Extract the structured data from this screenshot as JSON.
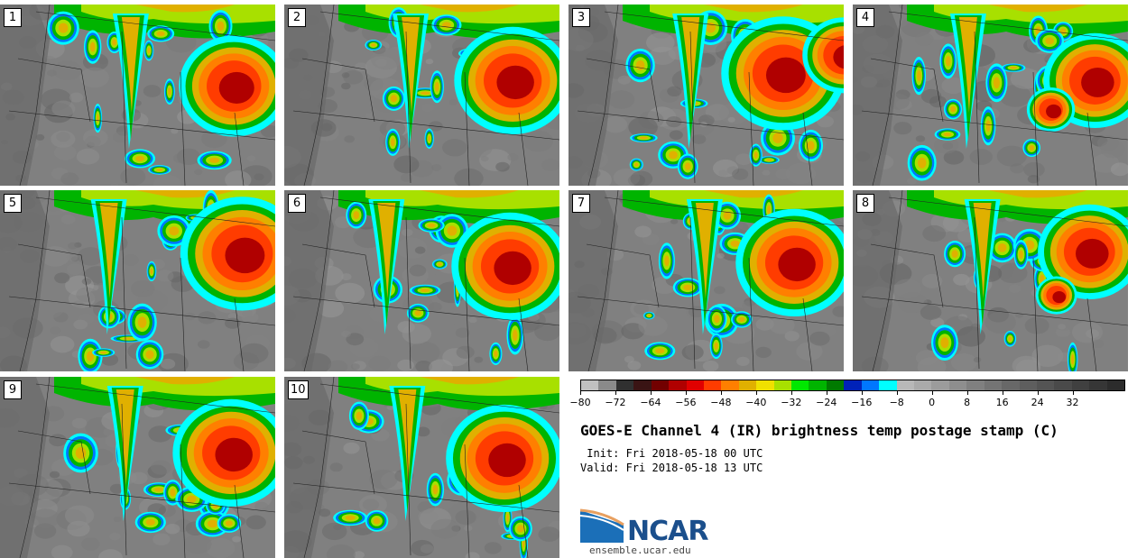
{
  "panels": [
    {
      "label": "1",
      "seed": 3,
      "storm": [
        [
          0.85,
          0.45,
          0.16
        ]
      ]
    },
    {
      "label": "2",
      "seed": 7,
      "storm": [
        [
          0.83,
          0.42,
          0.17
        ]
      ]
    },
    {
      "label": "3",
      "seed": 11,
      "storm": [
        [
          0.78,
          0.38,
          0.18
        ],
        [
          1.0,
          0.28,
          0.12
        ]
      ]
    },
    {
      "label": "4",
      "seed": 17,
      "storm": [
        [
          0.88,
          0.42,
          0.15
        ],
        [
          0.72,
          0.58,
          0.07
        ]
      ]
    },
    {
      "label": "5",
      "seed": 23,
      "storm": [
        [
          0.88,
          0.35,
          0.18
        ]
      ]
    },
    {
      "label": "6",
      "seed": 29,
      "storm": [
        [
          0.82,
          0.42,
          0.17
        ]
      ]
    },
    {
      "label": "7",
      "seed": 31,
      "storm": [
        [
          0.82,
          0.4,
          0.17
        ]
      ]
    },
    {
      "label": "8",
      "seed": 37,
      "storm": [
        [
          0.86,
          0.34,
          0.15
        ],
        [
          0.74,
          0.58,
          0.06
        ]
      ]
    },
    {
      "label": "9",
      "seed": 41,
      "storm": [
        [
          0.84,
          0.42,
          0.17
        ]
      ]
    },
    {
      "label": "10",
      "seed": 43,
      "storm": [
        [
          0.8,
          0.45,
          0.17
        ]
      ]
    }
  ],
  "colorbar": {
    "colors": [
      "#c0c0c0",
      "#8a8a8a",
      "#303030",
      "#3a1414",
      "#720000",
      "#b00000",
      "#e00000",
      "#ff3c00",
      "#ff7f00",
      "#e0b000",
      "#f0e000",
      "#a8e000",
      "#00e800",
      "#00b400",
      "#007a00",
      "#0022b8",
      "#0077ff",
      "#00ffff",
      "#b8b8b8",
      "#aaaaaa",
      "#9c9c9c",
      "#8e8e8e",
      "#808080",
      "#747474",
      "#686868",
      "#5e5e5e",
      "#545454",
      "#4a4a4a",
      "#404040",
      "#363636",
      "#2c2c2c"
    ],
    "tick_labels": [
      "−80",
      "−72",
      "−64",
      "−56",
      "−48",
      "−40",
      "−32",
      "−24",
      "−16",
      "−8",
      "0",
      "8",
      "16",
      "24",
      "32"
    ]
  },
  "title": "GOES-E Channel 4 (IR) brightness temp postage stamp (C)",
  "init_line": " Init: Fri 2018-05-18 00 UTC",
  "valid_line": "Valid: Fri 2018-05-18 13 UTC",
  "logo": {
    "name": "NCAR",
    "url": "ensemble.ucar.edu"
  }
}
